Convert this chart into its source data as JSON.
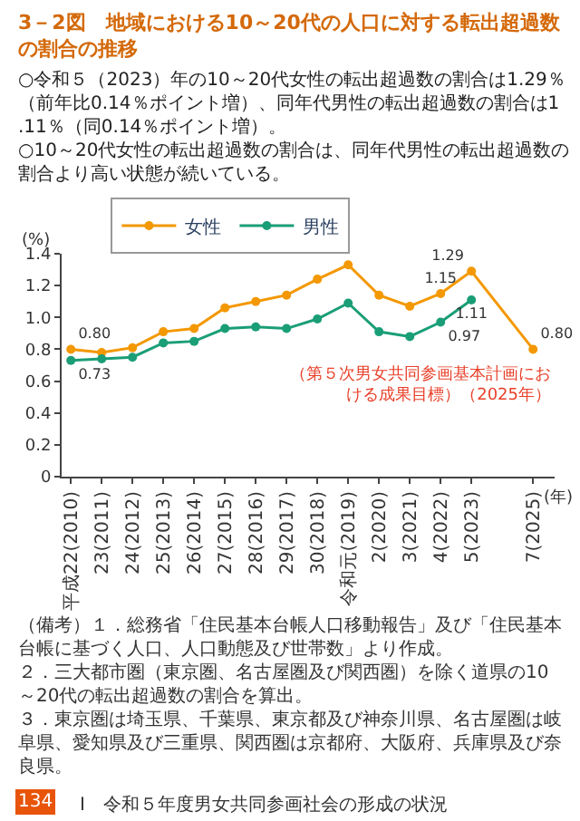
{
  "chart_data": {
    "type": "line",
    "title": "3－2図　地域における10～20代の人口に対する転出超過数の割合の推移",
    "subtitle": [
      "○令和５（2023）年の10～20代女性の転出超過数の割合は1.29％（前年比0.14％ポイント増）、同年代男性の転出超過数の割合は1.11％（同0.14％ポイント増）。",
      "○10～20代女性の転出超過数の割合は、同年代男性の転出超過数の割合より高い状態が続いている。"
    ],
    "ylabel": "(%)",
    "xlabel": "(年)",
    "categories": [
      "平成22(2010)",
      "23(2011)",
      "24(2012)",
      "25(2013)",
      "26(2014)",
      "27(2015)",
      "28(2016)",
      "29(2017)",
      "30(2018)",
      "令和元(2019)",
      "2(2020)",
      "3(2021)",
      "4(2022)",
      "5(2023)",
      null,
      "7(2025)"
    ],
    "ylim": [
      0,
      1.4
    ],
    "yticks": [
      0,
      0.2,
      0.4,
      0.6,
      0.8,
      {
        "value": 1.0,
        "label": "1.0"
      },
      1.2,
      1.4
    ],
    "series": [
      {
        "name": "女性",
        "color": "#f39800",
        "values": [
          0.8,
          0.78,
          0.81,
          0.91,
          0.93,
          1.06,
          1.1,
          1.14,
          1.24,
          1.33,
          1.14,
          1.07,
          1.15,
          1.29,
          null,
          0.8
        ],
        "value_labels": [
          "0.80",
          null,
          null,
          null,
          null,
          null,
          null,
          null,
          null,
          null,
          null,
          null,
          "1.15",
          "1.29",
          null,
          "0.80"
        ]
      },
      {
        "name": "男性",
        "color": "#1a9e77",
        "values": [
          0.73,
          0.74,
          0.75,
          0.84,
          0.85,
          0.93,
          0.94,
          0.93,
          0.99,
          1.09,
          0.91,
          0.88,
          0.97,
          1.11,
          null,
          null
        ],
        "value_labels": [
          "0.73",
          null,
          null,
          null,
          null,
          null,
          null,
          null,
          null,
          null,
          null,
          null,
          "0.97",
          "1.11",
          null,
          null
        ]
      }
    ],
    "marker": "circle",
    "line_style": "solid",
    "legend": "top left",
    "annotations": [
      "（第５次男女共同参画基本計画における成果目標）（2025年）",
      "（備考）１．総務省「住民基本台帳人口移動報告」及び「住民基本台帳に基づく人口、人口動態及び世帯数」より作成。",
      "２．三大都市圏（東京圏、名古屋圏及び関西圏）を除く道県の10～20代の転出超過数の割合を算出。",
      "３．東京圏は埼玉県、千葉県、東京都及び神奈川県、名古屋圏は岐阜県、愛知県及び三重県、関西圏は京都府、大阪府、兵庫県及び奈良県。",
      "134",
      "I　令和５年度男女共同参画社会の形成の状況"
    ]
  }
}
